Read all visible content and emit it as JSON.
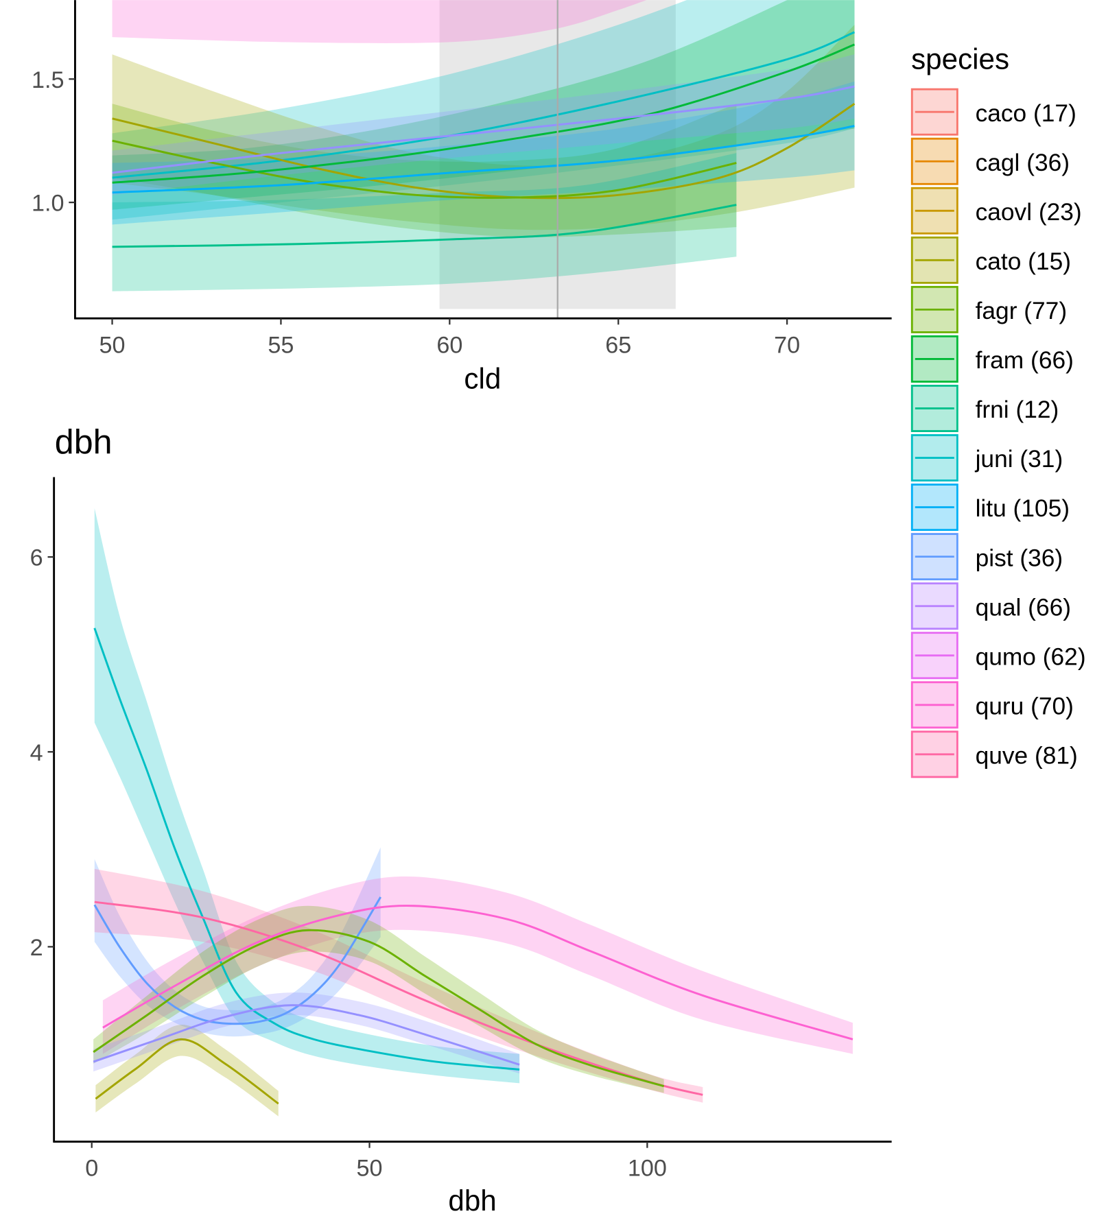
{
  "legend": {
    "title": "species",
    "position": "right",
    "items": [
      {
        "label": "caco (17)",
        "color": "#F8766D"
      },
      {
        "label": "cagl (36)",
        "color": "#E58700"
      },
      {
        "label": "caovl (23)",
        "color": "#C99800"
      },
      {
        "label": "cato (15)",
        "color": "#A3A500"
      },
      {
        "label": "fagr (77)",
        "color": "#6BB100"
      },
      {
        "label": "fram (66)",
        "color": "#00BA38"
      },
      {
        "label": "frni (12)",
        "color": "#00C08B"
      },
      {
        "label": "juni (31)",
        "color": "#00BFC4"
      },
      {
        "label": "litu (105)",
        "color": "#00B0F6"
      },
      {
        "label": "pist (36)",
        "color": "#619CFF"
      },
      {
        "label": "qual (66)",
        "color": "#B983FF"
      },
      {
        "label": "qumo (62)",
        "color": "#E76BF3"
      },
      {
        "label": "quru (70)",
        "color": "#FD61D1"
      },
      {
        "label": "quve (81)",
        "color": "#FF67A4"
      }
    ]
  },
  "chart_data": [
    {
      "type": "line",
      "title": "",
      "xlabel": "cld",
      "ylabel": "",
      "xlim": [
        48.9,
        73.1
      ],
      "ylim": [
        0.53,
        1.82
      ],
      "xticks": [
        "50",
        "55",
        "60",
        "65",
        "70"
      ],
      "xtick_values": [
        50,
        55,
        60,
        65,
        70
      ],
      "yticks": [
        "1.0",
        "1.5"
      ],
      "ytick_values": [
        1.0,
        1.5
      ],
      "grid": false,
      "highlight_band": [
        59.7,
        66.7
      ],
      "reference_line": 63.2,
      "series": [
        {
          "species": "quru",
          "color": "#FD61D1",
          "x": [
            50,
            55,
            60,
            63,
            65,
            67
          ],
          "y": [
            2.0,
            1.98,
            1.98,
            2.02,
            2.08,
            2.15
          ],
          "lower": [
            1.67,
            1.65,
            1.65,
            1.7,
            1.78,
            1.88
          ],
          "upper": [
            2.3,
            2.3,
            2.3,
            2.35,
            2.4,
            2.45
          ]
        },
        {
          "species": "juni",
          "color": "#00BFC4",
          "x": [
            50,
            55,
            60,
            65,
            70,
            72
          ],
          "y": [
            1.1,
            1.17,
            1.27,
            1.41,
            1.58,
            1.69
          ],
          "lower": [
            0.93,
            1.0,
            1.07,
            1.15,
            1.24,
            1.3
          ],
          "upper": [
            1.28,
            1.38,
            1.52,
            1.72,
            1.98,
            2.1
          ]
        },
        {
          "species": "cato",
          "color": "#A3A500",
          "x": [
            50,
            53,
            56,
            59,
            62,
            65,
            68,
            70,
            72
          ],
          "y": [
            1.34,
            1.24,
            1.14,
            1.06,
            1.02,
            1.03,
            1.1,
            1.22,
            1.4
          ],
          "lower": [
            1.08,
            1.03,
            0.97,
            0.92,
            0.89,
            0.9,
            0.95,
            1.0,
            1.06
          ],
          "upper": [
            1.6,
            1.45,
            1.31,
            1.2,
            1.15,
            1.17,
            1.28,
            1.45,
            1.72
          ]
        },
        {
          "species": "fagr",
          "color": "#6BB100",
          "x": [
            50,
            53,
            56,
            59,
            62,
            65,
            68.5
          ],
          "y": [
            1.25,
            1.16,
            1.08,
            1.03,
            1.02,
            1.05,
            1.16
          ],
          "lower": [
            1.1,
            1.03,
            0.95,
            0.89,
            0.86,
            0.87,
            0.9
          ],
          "upper": [
            1.4,
            1.29,
            1.21,
            1.17,
            1.17,
            1.22,
            1.4
          ]
        },
        {
          "species": "fram",
          "color": "#00BA38",
          "x": [
            50,
            54,
            58,
            62,
            66,
            70,
            72
          ],
          "y": [
            1.08,
            1.12,
            1.18,
            1.26,
            1.36,
            1.53,
            1.64
          ],
          "lower": [
            0.97,
            1.02,
            1.07,
            1.13,
            1.19,
            1.26,
            1.3
          ],
          "upper": [
            1.19,
            1.22,
            1.3,
            1.42,
            1.58,
            1.82,
            1.96
          ]
        },
        {
          "species": "frni",
          "color": "#00C08B",
          "x": [
            50,
            55,
            60,
            64,
            68.5
          ],
          "y": [
            0.82,
            0.83,
            0.85,
            0.88,
            0.99
          ],
          "lower": [
            0.64,
            0.65,
            0.67,
            0.71,
            0.78
          ],
          "upper": [
            1.0,
            1.01,
            1.04,
            1.07,
            1.2
          ]
        },
        {
          "species": "litu",
          "color": "#00B0F6",
          "x": [
            50,
            55,
            60,
            65,
            70,
            72
          ],
          "y": [
            1.04,
            1.07,
            1.12,
            1.17,
            1.26,
            1.31
          ],
          "lower": [
            0.91,
            0.96,
            1.01,
            1.05,
            1.1,
            1.13
          ],
          "upper": [
            1.16,
            1.18,
            1.23,
            1.3,
            1.42,
            1.49
          ]
        },
        {
          "species": "qual",
          "color": "#9590FF",
          "x": [
            50,
            55,
            60,
            65,
            70,
            72
          ],
          "y": [
            1.12,
            1.2,
            1.27,
            1.34,
            1.42,
            1.47
          ],
          "lower": [
            1.03,
            1.11,
            1.18,
            1.24,
            1.3,
            1.34
          ],
          "upper": [
            1.21,
            1.29,
            1.37,
            1.45,
            1.54,
            1.6
          ]
        }
      ]
    },
    {
      "type": "line",
      "title": "dbh",
      "xlabel": "dbh",
      "ylabel": "",
      "xlim": [
        -6.8,
        144
      ],
      "ylim": [
        0,
        6.82
      ],
      "xticks": [
        "0",
        "50",
        "100"
      ],
      "xtick_values": [
        0,
        50,
        100
      ],
      "yticks": [
        "2",
        "4",
        "6"
      ],
      "ytick_values": [
        2,
        4,
        6
      ],
      "grid": false,
      "series": [
        {
          "species": "juni",
          "color": "#00BFC4",
          "x": [
            0.5,
            5,
            10,
            15,
            20,
            26,
            33,
            40,
            50,
            62,
            77
          ],
          "y": [
            5.27,
            4.55,
            3.8,
            3.0,
            2.3,
            1.53,
            1.21,
            1.05,
            0.93,
            0.82,
            0.74
          ],
          "lower": [
            4.3,
            3.75,
            3.1,
            2.45,
            1.85,
            1.25,
            1.02,
            0.88,
            0.77,
            0.68,
            0.6
          ],
          "upper": [
            6.5,
            5.4,
            4.5,
            3.6,
            2.8,
            1.85,
            1.42,
            1.24,
            1.1,
            0.98,
            0.9
          ]
        },
        {
          "species": "pist",
          "color": "#619CFF",
          "x": [
            0.5,
            5,
            10,
            15,
            20,
            25,
            30,
            35,
            40,
            45,
            52
          ],
          "y": [
            2.43,
            2.0,
            1.62,
            1.38,
            1.25,
            1.21,
            1.23,
            1.32,
            1.52,
            1.85,
            2.51
          ],
          "lower": [
            2.05,
            1.7,
            1.4,
            1.22,
            1.12,
            1.08,
            1.1,
            1.17,
            1.33,
            1.58,
            2.1
          ],
          "upper": [
            2.9,
            2.32,
            1.85,
            1.55,
            1.39,
            1.35,
            1.37,
            1.48,
            1.72,
            2.15,
            3.02
          ]
        },
        {
          "species": "quve",
          "color": "#FF67A4",
          "x": [
            0.5,
            20,
            40,
            60,
            80,
            100,
            110
          ],
          "y": [
            2.46,
            2.3,
            1.95,
            1.45,
            1.0,
            0.62,
            0.48
          ],
          "lower": [
            2.15,
            2.05,
            1.75,
            1.28,
            0.88,
            0.54,
            0.4
          ],
          "upper": [
            2.8,
            2.57,
            2.17,
            1.63,
            1.13,
            0.7,
            0.56
          ]
        },
        {
          "species": "quru",
          "color": "#FD61D1",
          "x": [
            2,
            15,
            30,
            45,
            58,
            75,
            90,
            110,
            137
          ],
          "y": [
            1.17,
            1.6,
            2.05,
            2.33,
            2.42,
            2.28,
            1.95,
            1.5,
            1.05
          ],
          "lower": [
            0.9,
            1.35,
            1.8,
            2.1,
            2.17,
            2.03,
            1.7,
            1.25,
            0.9
          ],
          "upper": [
            1.45,
            1.88,
            2.32,
            2.62,
            2.72,
            2.55,
            2.22,
            1.75,
            1.22
          ]
        },
        {
          "species": "fagr",
          "color": "#6BB100",
          "x": [
            0.3,
            10,
            20,
            30,
            39,
            50,
            60,
            70,
            80,
            90,
            103
          ],
          "y": [
            0.92,
            1.3,
            1.7,
            2.02,
            2.17,
            2.05,
            1.7,
            1.35,
            1.0,
            0.78,
            0.57
          ],
          "lower": [
            0.8,
            1.12,
            1.48,
            1.8,
            1.95,
            1.85,
            1.52,
            1.18,
            0.87,
            0.68,
            0.5
          ],
          "upper": [
            1.05,
            1.5,
            1.95,
            2.28,
            2.42,
            2.27,
            1.9,
            1.52,
            1.15,
            0.9,
            0.64
          ]
        },
        {
          "species": "cato",
          "color": "#A3A500",
          "x": [
            0.7,
            8,
            16,
            24,
            33.6
          ],
          "y": [
            0.44,
            0.75,
            1.05,
            0.8,
            0.39
          ],
          "lower": [
            0.3,
            0.6,
            0.88,
            0.66,
            0.26
          ],
          "upper": [
            0.58,
            0.9,
            1.2,
            0.95,
            0.52
          ]
        },
        {
          "species": "qual",
          "color": "#9590FF",
          "x": [
            0.3,
            12,
            24,
            36,
            48,
            60,
            77
          ],
          "y": [
            0.82,
            1.05,
            1.28,
            1.4,
            1.3,
            1.1,
            0.79
          ],
          "lower": [
            0.72,
            0.95,
            1.18,
            1.3,
            1.2,
            1.0,
            0.7
          ],
          "upper": [
            0.95,
            1.18,
            1.42,
            1.53,
            1.44,
            1.24,
            0.9
          ]
        }
      ]
    }
  ]
}
